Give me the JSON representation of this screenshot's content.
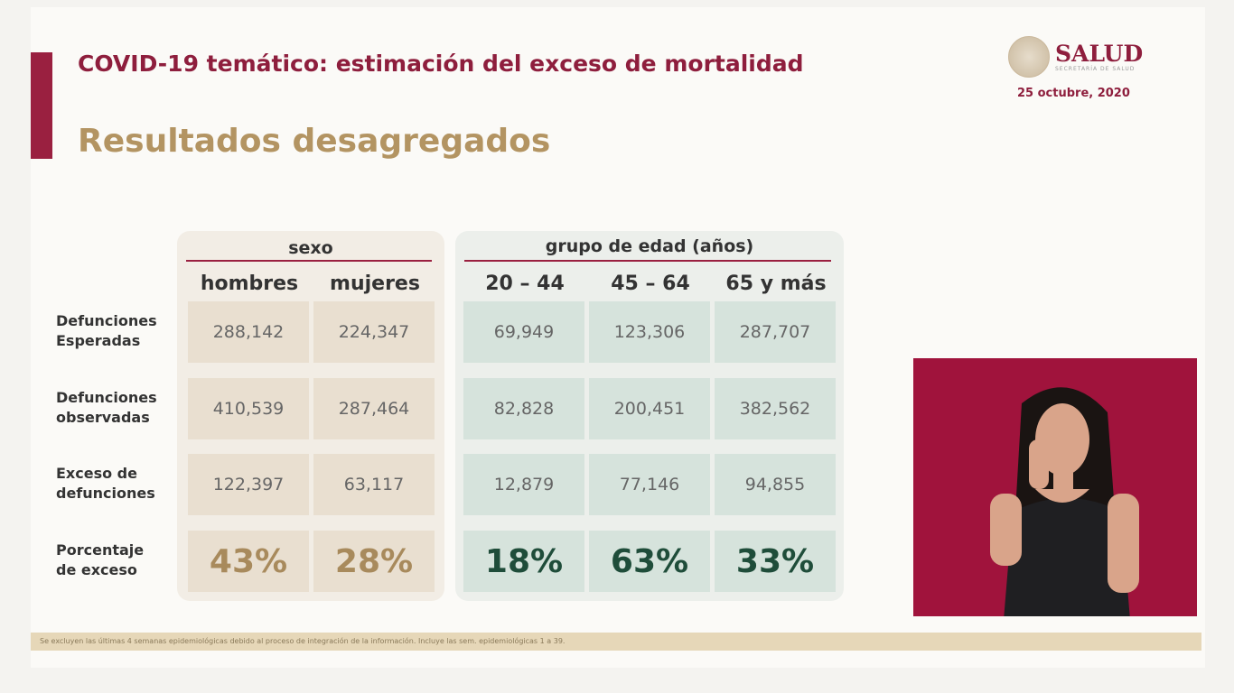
{
  "header": {
    "title": "COVID-19 temático: estimación del exceso de mortalidad",
    "subtitle": "Resultados desagregados",
    "brand": "SALUD",
    "brand_sub": "SECRETARÍA DE SALUD",
    "date": "25 octubre, 2020"
  },
  "table": {
    "group_sexo": "sexo",
    "group_edad": "grupo de edad (años)",
    "columns": [
      "hombres",
      "mujeres",
      "20 – 44",
      "45 – 64",
      "65 y más"
    ],
    "rows": [
      {
        "label1": "Defunciones",
        "label2": "Esperadas",
        "values": [
          "288,142",
          "224,347",
          "69,949",
          "123,306",
          "287,707"
        ]
      },
      {
        "label1": "Defunciones",
        "label2": "observadas",
        "values": [
          "410,539",
          "287,464",
          "82,828",
          "200,451",
          "382,562"
        ]
      },
      {
        "label1": "Exceso de",
        "label2": "defunciones",
        "values": [
          "122,397",
          "63,117",
          "12,879",
          "77,146",
          "94,855"
        ]
      },
      {
        "label1": "Porcentaje",
        "label2": "de exceso",
        "values": [
          "43%",
          "28%",
          "18%",
          "63%",
          "33%"
        ]
      }
    ]
  },
  "footer": "Se excluyen las últimas 4 semanas epidemiológicas debido al proceso de integración de la información. Incluye las sem. epidemiológicas 1 a 39.",
  "colors": {
    "maroon": "#8e1e3d",
    "gold": "#b39462",
    "beige_cell": "#e9dfd0",
    "teal_cell": "#d6e3dc"
  }
}
